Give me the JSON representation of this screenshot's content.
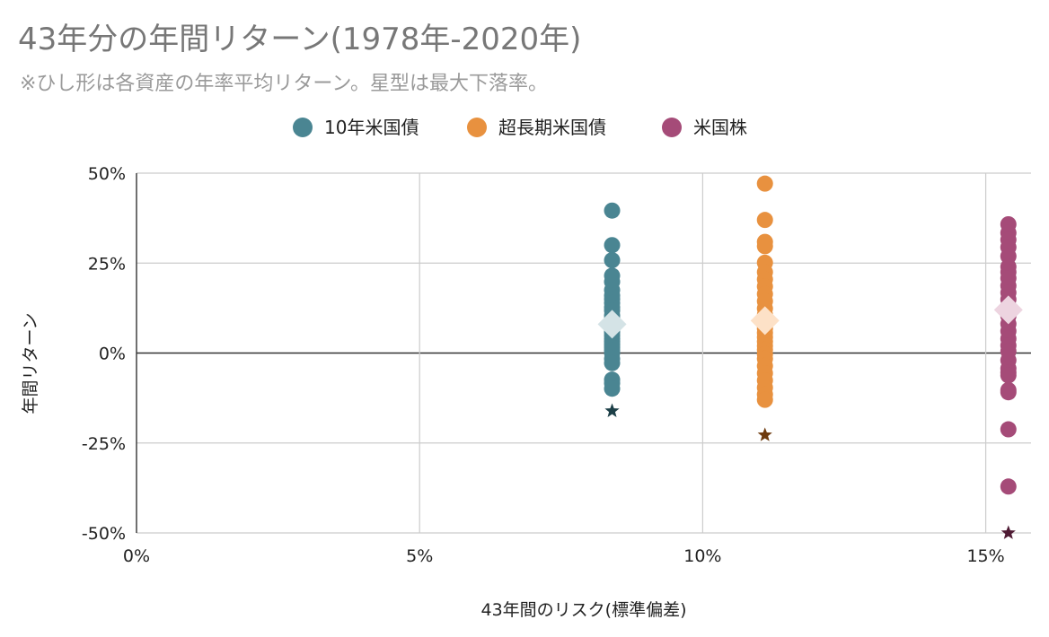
{
  "chart_data": {
    "type": "scatter",
    "title": "43年分の年間リターン(1978年-2020年)",
    "subtitle": "※ひし形は各資産の年率平均リターン。星型は最大下落率。",
    "xlabel": "43年間のリスク(標準偏差)",
    "ylabel": "年間リターン",
    "xlim": [
      0,
      15.8
    ],
    "ylim": [
      -50,
      50
    ],
    "x_ticks": [
      "0%",
      "5%",
      "10%",
      "15%"
    ],
    "x_tick_values": [
      0,
      5,
      10,
      15
    ],
    "y_ticks": [
      "50%",
      "25%",
      "0%",
      "-25%",
      "-50%"
    ],
    "y_tick_values": [
      50,
      25,
      0,
      -25,
      -50
    ],
    "grid": true,
    "legend_position": "top",
    "series": [
      {
        "name": "10年米国債",
        "color": "#4a8592",
        "mean_color": "#d4e3e6",
        "min_color": "#1c3f47",
        "x": 8.4,
        "returns": [
          39.6,
          30.0,
          25.8,
          21.5,
          19.8,
          17.5,
          16.0,
          15.0,
          13.9,
          12.7,
          11.8,
          10.5,
          9.6,
          8.9,
          8.2,
          7.4,
          6.6,
          5.8,
          4.9,
          4.0,
          3.2,
          2.4,
          1.6,
          0.8,
          0.0,
          -1.6,
          -2.8,
          -7.4,
          -8.4,
          -9.9
        ],
        "mean": 8.0,
        "min": -16.1
      },
      {
        "name": "超長期米国債",
        "color": "#e8913f",
        "mean_color": "#fde1c7",
        "min_color": "#6e3b0e",
        "x": 11.1,
        "returns": [
          47.1,
          37.0,
          30.9,
          29.7,
          25.1,
          22.5,
          20.5,
          18.5,
          16.4,
          14.4,
          12.4,
          10.6,
          9.2,
          8.0,
          6.8,
          5.6,
          4.4,
          3.2,
          2.0,
          0.9,
          -0.3,
          -1.6,
          -3.6,
          -5.6,
          -7.6,
          -9.6,
          -11.5,
          -13.0
        ],
        "mean": 9.0,
        "min": -22.8
      },
      {
        "name": "米国株",
        "color": "#a54b78",
        "mean_color": "#edd4e0",
        "min_color": "#4e1a33",
        "x": 15.4,
        "returns": [
          35.8,
          33.4,
          31.5,
          29.4,
          26.9,
          24.0,
          22.5,
          20.8,
          18.7,
          16.8,
          14.9,
          12.8,
          11.6,
          10.3,
          8.1,
          6.1,
          4.0,
          2.1,
          0.5,
          -2.0,
          -4.3,
          -5.4,
          -6.2,
          -10.3,
          -10.9,
          -21.2,
          -37.1
        ],
        "mean": 12.0,
        "min": -50.0
      }
    ]
  }
}
